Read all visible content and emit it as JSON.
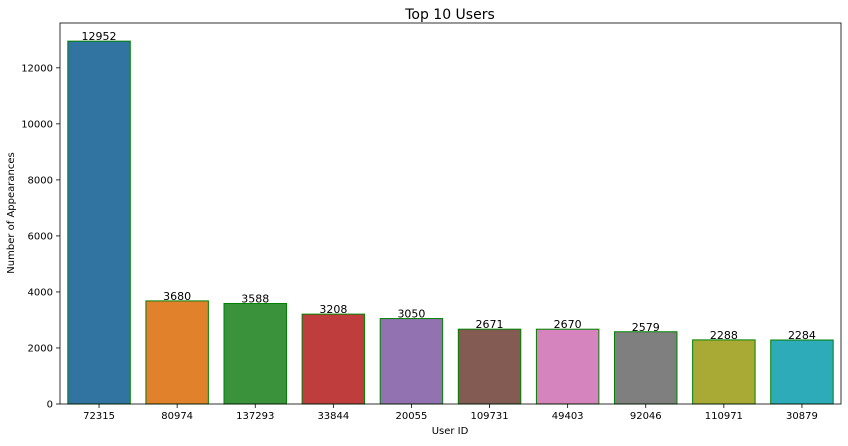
{
  "chart_data": {
    "type": "bar",
    "title": "Top 10 Users",
    "xlabel": "User ID",
    "ylabel": "Number of Appearances",
    "categories": [
      "72315",
      "80974",
      "137293",
      "33844",
      "20055",
      "109731",
      "49403",
      "92046",
      "110971",
      "30879"
    ],
    "values": [
      12952,
      3680,
      3588,
      3208,
      3050,
      2671,
      2670,
      2579,
      2288,
      2284
    ],
    "data_labels": [
      "12952",
      "3680",
      "3588",
      "3208",
      "3050",
      "2671",
      "2670",
      "2579",
      "2288",
      "2284"
    ],
    "ylim": [
      0,
      13600
    ],
    "yticks": [
      0,
      2000,
      4000,
      6000,
      8000,
      10000,
      12000
    ],
    "ytick_labels": [
      "0",
      "2000",
      "4000",
      "6000",
      "8000",
      "10000",
      "12000"
    ],
    "grid": false,
    "colors": [
      "#3274a1",
      "#e1812c",
      "#3a923a",
      "#c03d3e",
      "#9372b2",
      "#845b53",
      "#d684bd",
      "#7f7f7f",
      "#a9aa35",
      "#2eabb8"
    ],
    "bar_edge_color": "#008000"
  }
}
